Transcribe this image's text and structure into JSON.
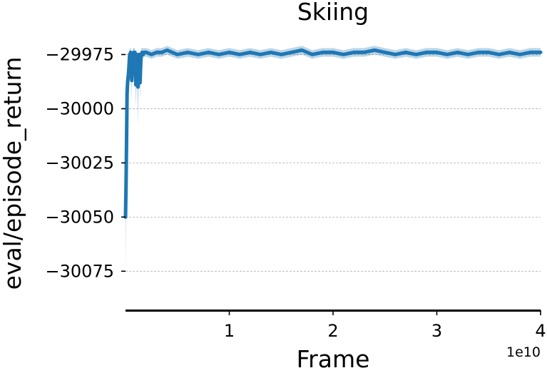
{
  "chart_data": {
    "type": "line",
    "title": "Skiing",
    "xlabel": "Frame",
    "ylabel": "eval/episode_return",
    "x_exponent_label": "1e10",
    "xlim": [
      0,
      40000000000.0
    ],
    "ylim": [
      -30093,
      -29963
    ],
    "xticks": [
      10000000000.0,
      20000000000.0,
      30000000000.0,
      40000000000.0
    ],
    "xtick_labels": [
      "1",
      "2",
      "3",
      "4"
    ],
    "yticks": [
      -29975,
      -30000,
      -30025,
      -30050,
      -30075
    ],
    "ytick_labels": [
      "−29975",
      "−30000",
      "−30025",
      "−30050",
      "−30075"
    ],
    "grid": "y",
    "legend": "none",
    "series_color": "#1f77b4",
    "series": [
      {
        "x": [
          0,
          50000000.0,
          100000000.0,
          150000000.0,
          200000000.0,
          300000000.0,
          400000000.0,
          500000000.0,
          600000000.0,
          700000000.0,
          800000000.0,
          900000000.0,
          1000000000.0,
          1100000000.0,
          1200000000.0,
          1300000000.0,
          1400000000.0,
          1500000000.0,
          1600000000.0,
          1700000000.0,
          1800000000.0,
          2000000000.0,
          2500000000.0,
          3000000000.0,
          3500000000.0,
          4000000000.0,
          5000000000.0,
          6000000000.0,
          7000000000.0,
          8000000000.0,
          9000000000.0,
          10000000000.0,
          11000000000.0,
          12000000000.0,
          13000000000.0,
          14000000000.0,
          15000000000.0,
          16000000000.0,
          17000000000.0,
          18000000000.0,
          19000000000.0,
          20000000000.0,
          21000000000.0,
          22000000000.0,
          23000000000.0,
          24000000000.0,
          25000000000.0,
          26000000000.0,
          27000000000.0,
          28000000000.0,
          29000000000.0,
          30000000000.0,
          31000000000.0,
          32000000000.0,
          33000000000.0,
          34000000000.0,
          35000000000.0,
          36000000000.0,
          37000000000.0,
          38000000000.0,
          39000000000.0,
          40000000000.0
        ],
        "y": [
          -30050,
          -30035,
          -30015,
          -29993,
          -29988,
          -29983,
          -29975,
          -29974,
          -29987,
          -29975,
          -29974,
          -29974,
          -29989,
          -29975,
          -29990,
          -29975,
          -29988,
          -29975,
          -29974,
          -29975,
          -29974,
          -29974,
          -29975,
          -29974,
          -29974,
          -29973,
          -29975,
          -29974,
          -29975,
          -29974,
          -29975,
          -29974,
          -29975,
          -29974,
          -29975,
          -29974,
          -29975,
          -29974,
          -29973,
          -29975,
          -29974,
          -29974,
          -29975,
          -29974,
          -29974,
          -29973,
          -29974,
          -29975,
          -29974,
          -29975,
          -29974,
          -29974,
          -29975,
          -29974,
          -29975,
          -29974,
          -29974,
          -29975,
          -29974,
          -29975,
          -29974,
          -29974
        ],
        "y_low": [
          -30075,
          -30050,
          -30025,
          -29996,
          -29995,
          -29996,
          -29977,
          -29976,
          -29996,
          -29977,
          -29976,
          -29977,
          -30000,
          -29978,
          -30008,
          -29977,
          -29996,
          -29977,
          -29976,
          -29977,
          -29976,
          -29976,
          -29977,
          -29976,
          -29976,
          -29975,
          -29977,
          -29976,
          -29977,
          -29976,
          -29977,
          -29976,
          -29977,
          -29976,
          -29977,
          -29976,
          -29977,
          -29976,
          -29975,
          -29977,
          -29976,
          -29976,
          -29977,
          -29976,
          -29976,
          -29975,
          -29976,
          -29977,
          -29976,
          -29977,
          -29976,
          -29976,
          -29977,
          -29976,
          -29977,
          -29976,
          -29976,
          -29977,
          -29976,
          -29977,
          -29976,
          -29976
        ],
        "y_high": [
          -30040,
          -30030,
          -30005,
          -29985,
          -29980,
          -29978,
          -29972,
          -29972,
          -29978,
          -29972,
          -29972,
          -29972,
          -29978,
          -29972,
          -29980,
          -29972,
          -29978,
          -29972,
          -29972,
          -29972,
          -29972,
          -29972,
          -29973,
          -29972,
          -29972,
          -29971,
          -29973,
          -29972,
          -29973,
          -29972,
          -29973,
          -29972,
          -29973,
          -29972,
          -29973,
          -29972,
          -29973,
          -29972,
          -29971,
          -29973,
          -29972,
          -29972,
          -29973,
          -29972,
          -29972,
          -29971,
          -29972,
          -29973,
          -29972,
          -29973,
          -29972,
          -29972,
          -29973,
          -29972,
          -29973,
          -29972,
          -29972,
          -29973,
          -29972,
          -29973,
          -29972,
          -29972
        ]
      }
    ]
  }
}
